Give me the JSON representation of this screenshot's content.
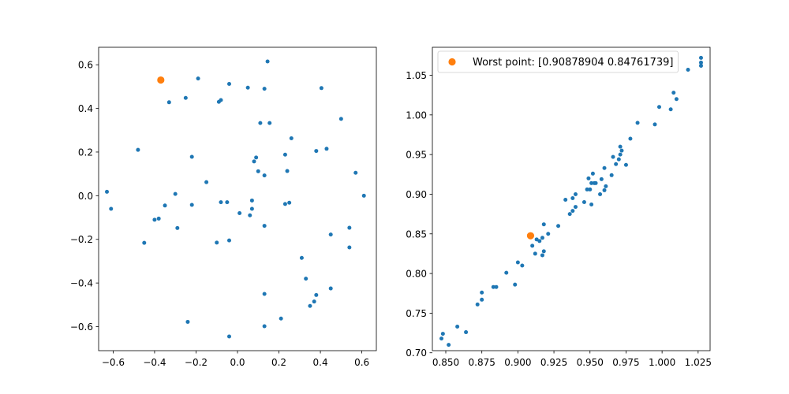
{
  "chart_data": [
    {
      "type": "scatter",
      "title": "",
      "xlabel": "",
      "ylabel": "",
      "xlim": [
        -0.67,
        0.67
      ],
      "ylim": [
        -0.71,
        0.68
      ],
      "xticks": [
        -0.6,
        -0.4,
        -0.2,
        0.0,
        0.2,
        0.4,
        0.6
      ],
      "xtick_labels": [
        "−0.6",
        "−0.4",
        "−0.2",
        "0.0",
        "0.2",
        "0.4",
        "0.6"
      ],
      "yticks": [
        -0.6,
        -0.4,
        -0.2,
        0.0,
        0.2,
        0.4,
        0.6
      ],
      "ytick_labels": [
        "−0.6",
        "−0.4",
        "−0.2",
        "0.0",
        "0.2",
        "0.4",
        "0.6"
      ],
      "grid": false,
      "series": [
        {
          "color": "#1f77b4",
          "marker": "point",
          "points": [
            [
              0.145,
              0.615
            ],
            [
              0.05,
              0.495
            ],
            [
              -0.37,
              0.53
            ],
            [
              -0.19,
              0.537
            ],
            [
              -0.04,
              0.512
            ],
            [
              0.13,
              0.49
            ],
            [
              0.405,
              0.493
            ],
            [
              -0.25,
              0.448
            ],
            [
              -0.33,
              0.428
            ],
            [
              -0.09,
              0.43
            ],
            [
              -0.08,
              0.438
            ],
            [
              0.11,
              0.333
            ],
            [
              0.155,
              0.333
            ],
            [
              0.5,
              0.352
            ],
            [
              0.26,
              0.263
            ],
            [
              -0.48,
              0.21
            ],
            [
              0.38,
              0.205
            ],
            [
              0.43,
              0.215
            ],
            [
              -0.22,
              0.178
            ],
            [
              0.23,
              0.188
            ],
            [
              0.09,
              0.175
            ],
            [
              0.08,
              0.157
            ],
            [
              0.1,
              0.112
            ],
            [
              0.13,
              0.093
            ],
            [
              0.24,
              0.113
            ],
            [
              0.57,
              0.105
            ],
            [
              -0.15,
              0.062
            ],
            [
              -0.63,
              0.018
            ],
            [
              -0.3,
              0.008
            ],
            [
              0.61,
              0.0
            ],
            [
              -0.61,
              -0.06
            ],
            [
              -0.35,
              -0.045
            ],
            [
              -0.22,
              -0.042
            ],
            [
              -0.08,
              -0.03
            ],
            [
              -0.05,
              -0.03
            ],
            [
              0.07,
              -0.022
            ],
            [
              0.23,
              -0.038
            ],
            [
              0.25,
              -0.032
            ],
            [
              0.07,
              -0.06
            ],
            [
              0.01,
              -0.08
            ],
            [
              0.06,
              -0.09
            ],
            [
              -0.4,
              -0.11
            ],
            [
              -0.38,
              -0.105
            ],
            [
              -0.29,
              -0.148
            ],
            [
              0.13,
              -0.138
            ],
            [
              0.45,
              -0.178
            ],
            [
              0.54,
              -0.147
            ],
            [
              -0.45,
              -0.216
            ],
            [
              -0.1,
              -0.215
            ],
            [
              -0.04,
              -0.205
            ],
            [
              0.54,
              -0.237
            ],
            [
              0.31,
              -0.285
            ],
            [
              0.33,
              -0.38
            ],
            [
              0.45,
              -0.425
            ],
            [
              0.13,
              -0.45
            ],
            [
              0.38,
              -0.455
            ],
            [
              0.37,
              -0.485
            ],
            [
              0.35,
              -0.505
            ],
            [
              0.21,
              -0.563
            ],
            [
              -0.24,
              -0.578
            ],
            [
              0.13,
              -0.598
            ],
            [
              -0.04,
              -0.645
            ]
          ]
        },
        {
          "color": "#ff7f0e",
          "marker": "circle",
          "points": [
            [
              -0.37,
              0.53
            ]
          ]
        }
      ]
    },
    {
      "type": "scatter",
      "title": "",
      "xlabel": "",
      "ylabel": "",
      "xlim": [
        0.8407,
        1.0333
      ],
      "ylim": [
        0.7027,
        1.0853
      ],
      "xticks": [
        0.85,
        0.875,
        0.9,
        0.925,
        0.95,
        0.975,
        1.0,
        1.025
      ],
      "xtick_labels": [
        "0.850",
        "0.875",
        "0.900",
        "0.925",
        "0.950",
        "0.975",
        "1.000",
        "1.025"
      ],
      "yticks": [
        0.7,
        0.75,
        0.8,
        0.85,
        0.9,
        0.95,
        1.0,
        1.05
      ],
      "ytick_labels": [
        "0.70",
        "0.75",
        "0.80",
        "0.85",
        "0.90",
        "0.95",
        "1.00",
        "1.05"
      ],
      "grid": false,
      "legend": {
        "location": "upper-left",
        "entries": [
          "Worst point: [0.90878904 0.84761739]"
        ]
      },
      "series": [
        {
          "color": "#1f77b4",
          "marker": "point",
          "points": [
            [
              0.847,
              0.718
            ],
            [
              0.848,
              0.724
            ],
            [
              0.852,
              0.71
            ],
            [
              0.858,
              0.733
            ],
            [
              0.864,
              0.726
            ],
            [
              0.872,
              0.761
            ],
            [
              0.875,
              0.767
            ],
            [
              0.875,
              0.776
            ],
            [
              0.883,
              0.783
            ],
            [
              0.885,
              0.783
            ],
            [
              0.892,
              0.801
            ],
            [
              0.898,
              0.786
            ],
            [
              0.9,
              0.814
            ],
            [
              0.903,
              0.81
            ],
            [
              0.91,
              0.835
            ],
            [
              0.912,
              0.825
            ],
            [
              0.913,
              0.843
            ],
            [
              0.915,
              0.841
            ],
            [
              0.917,
              0.823
            ],
            [
              0.918,
              0.828
            ],
            [
              0.917,
              0.845
            ],
            [
              0.918,
              0.862
            ],
            [
              0.921,
              0.85
            ],
            [
              0.928,
              0.86
            ],
            [
              0.933,
              0.893
            ],
            [
              0.936,
              0.875
            ],
            [
              0.938,
              0.879
            ],
            [
              0.938,
              0.895
            ],
            [
              0.94,
              0.9
            ],
            [
              0.94,
              0.884
            ],
            [
              0.946,
              0.89
            ],
            [
              0.948,
              0.906
            ],
            [
              0.949,
              0.92
            ],
            [
              0.95,
              0.906
            ],
            [
              0.951,
              0.887
            ],
            [
              0.951,
              0.914
            ],
            [
              0.952,
              0.926
            ],
            [
              0.953,
              0.914
            ],
            [
              0.954,
              0.914
            ],
            [
              0.957,
              0.9
            ],
            [
              0.958,
              0.919
            ],
            [
              0.96,
              0.933
            ],
            [
              0.96,
              0.905
            ],
            [
              0.961,
              0.91
            ],
            [
              0.965,
              0.924
            ],
            [
              0.966,
              0.947
            ],
            [
              0.968,
              0.938
            ],
            [
              0.97,
              0.944
            ],
            [
              0.971,
              0.96
            ],
            [
              0.971,
              0.95
            ],
            [
              0.972,
              0.955
            ],
            [
              0.975,
              0.937
            ],
            [
              0.978,
              0.97
            ],
            [
              0.983,
              0.99
            ],
            [
              0.995,
              0.988
            ],
            [
              0.998,
              1.01
            ],
            [
              1.006,
              1.007
            ],
            [
              1.008,
              1.028
            ],
            [
              1.01,
              1.02
            ],
            [
              1.018,
              1.057
            ],
            [
              1.027,
              1.062
            ],
            [
              1.027,
              1.066
            ],
            [
              1.027,
              1.072
            ]
          ]
        },
        {
          "name": "Worst point: [0.90878904 0.84761739]",
          "color": "#ff7f0e",
          "marker": "circle",
          "points": [
            [
              0.90878904,
              0.84761739
            ]
          ]
        }
      ]
    }
  ]
}
